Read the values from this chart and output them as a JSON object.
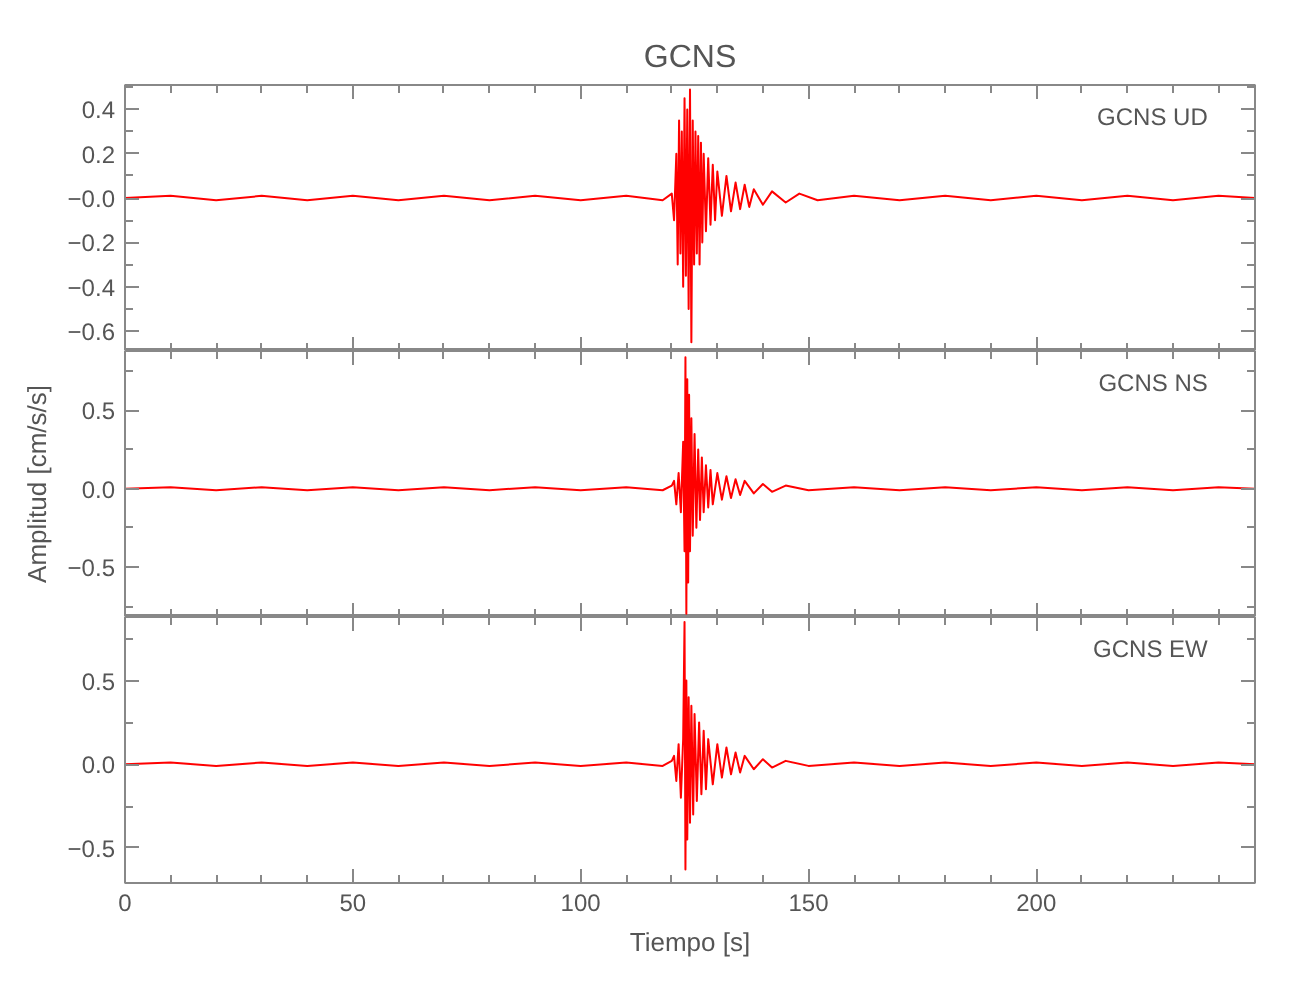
{
  "chart_data": [
    {
      "type": "line",
      "title": "GCNS",
      "annotations": [
        "GCNS   UD"
      ],
      "grid": false,
      "tick_labels": "y",
      "xlim": [
        0,
        248
      ],
      "ylim": [
        -0.69,
        0.51
      ],
      "xticks": [
        0,
        {
          "value": 10,
          "label": null
        },
        {
          "value": 20,
          "label": null
        },
        {
          "value": 30,
          "label": null
        },
        {
          "value": 40,
          "label": null
        },
        50,
        {
          "value": 60,
          "label": null
        },
        {
          "value": 70,
          "label": null
        },
        {
          "value": 80,
          "label": null
        },
        {
          "value": 90,
          "label": null
        },
        100,
        {
          "value": 110,
          "label": null
        },
        {
          "value": 120,
          "label": null
        },
        {
          "value": 130,
          "label": null
        },
        {
          "value": 140,
          "label": null
        },
        150,
        {
          "value": 160,
          "label": null
        },
        {
          "value": 170,
          "label": null
        },
        {
          "value": 180,
          "label": null
        },
        {
          "value": 190,
          "label": null
        },
        200,
        {
          "value": 210,
          "label": null
        },
        {
          "value": 220,
          "label": null
        },
        {
          "value": 230,
          "label": null
        },
        {
          "value": 240,
          "label": null
        }
      ],
      "yticks": [
        {
          "value": -0.6,
          "label": "−0.6"
        },
        {
          "value": -0.5,
          "label": null
        },
        {
          "value": -0.4,
          "label": "−0.4"
        },
        {
          "value": -0.3,
          "label": null
        },
        {
          "value": -0.2,
          "label": "−0.2"
        },
        {
          "value": -0.1,
          "label": null
        },
        {
          "value": 0,
          "label": "−0.0"
        },
        {
          "value": 0.1,
          "label": null
        },
        {
          "value": 0.2,
          "label": "0.2"
        },
        {
          "value": 0.3,
          "label": null
        },
        {
          "value": 0.4,
          "label": "0.4"
        },
        {
          "value": 0.5,
          "label": null
        }
      ],
      "series": [
        {
          "color": "#ff0000",
          "x": [
            0,
            10,
            20,
            30,
            40,
            50,
            60,
            70,
            80,
            90,
            100,
            110,
            118,
            120,
            120.5,
            121,
            121.3,
            121.6,
            121.9,
            122.2,
            122.5,
            122.8,
            123.1,
            123.4,
            123.7,
            124,
            124.3,
            124.6,
            124.9,
            125.2,
            125.5,
            125.8,
            126.1,
            126.4,
            126.7,
            127,
            127.5,
            128,
            128.5,
            129,
            129.5,
            130,
            131,
            132,
            133,
            134,
            135,
            136,
            137,
            138,
            140,
            142,
            145,
            148,
            152,
            160,
            170,
            180,
            190,
            200,
            210,
            220,
            230,
            240,
            248
          ],
          "values": [
            0,
            0.01,
            -0.01,
            0.01,
            -0.01,
            0.01,
            -0.01,
            0.01,
            -0.01,
            0.01,
            -0.01,
            0.01,
            -0.01,
            0.02,
            -0.1,
            0.2,
            -0.3,
            0.35,
            -0.25,
            0.3,
            -0.4,
            0.45,
            -0.35,
            0.4,
            -0.5,
            0.49,
            -0.65,
            0.35,
            -0.3,
            0.3,
            -0.25,
            0.28,
            -0.3,
            0.25,
            -0.2,
            0.2,
            -0.15,
            0.18,
            -0.12,
            0.15,
            -0.1,
            0.12,
            -0.08,
            0.1,
            -0.06,
            0.07,
            -0.05,
            0.06,
            -0.04,
            0.04,
            -0.03,
            0.03,
            -0.02,
            0.02,
            -0.01,
            0.01,
            -0.01,
            0.01,
            -0.01,
            0.01,
            -0.01,
            0.01,
            -0.01,
            0.01,
            0
          ]
        }
      ]
    },
    {
      "type": "line",
      "ylabel": "Amplitud [cm/s/s]",
      "annotations": [
        "GCNS   NS"
      ],
      "grid": false,
      "tick_labels": "y",
      "xlim": [
        0,
        248
      ],
      "ylim": [
        -0.82,
        0.88
      ],
      "xticks": [
        0,
        {
          "value": 10,
          "label": null
        },
        {
          "value": 20,
          "label": null
        },
        {
          "value": 30,
          "label": null
        },
        {
          "value": 40,
          "label": null
        },
        50,
        {
          "value": 60,
          "label": null
        },
        {
          "value": 70,
          "label": null
        },
        {
          "value": 80,
          "label": null
        },
        {
          "value": 90,
          "label": null
        },
        100,
        {
          "value": 110,
          "label": null
        },
        {
          "value": 120,
          "label": null
        },
        {
          "value": 130,
          "label": null
        },
        {
          "value": 140,
          "label": null
        },
        150,
        {
          "value": 160,
          "label": null
        },
        {
          "value": 170,
          "label": null
        },
        {
          "value": 180,
          "label": null
        },
        {
          "value": 190,
          "label": null
        },
        200,
        {
          "value": 210,
          "label": null
        },
        {
          "value": 220,
          "label": null
        },
        {
          "value": 230,
          "label": null
        },
        {
          "value": 240,
          "label": null
        }
      ],
      "yticks": [
        {
          "value": -0.75,
          "label": null
        },
        {
          "value": -0.5,
          "label": "−0.5"
        },
        {
          "value": -0.25,
          "label": null
        },
        {
          "value": 0,
          "label": "0.0"
        },
        {
          "value": 0.25,
          "label": null
        },
        {
          "value": 0.5,
          "label": "0.5"
        },
        {
          "value": 0.75,
          "label": null
        }
      ],
      "series": [
        {
          "color": "#ff0000",
          "x": [
            0,
            10,
            20,
            30,
            40,
            50,
            60,
            70,
            80,
            90,
            100,
            110,
            118,
            120,
            120.5,
            121,
            121.5,
            122,
            122.5,
            122.8,
            123,
            123.2,
            123.4,
            123.6,
            123.8,
            124,
            124.3,
            124.6,
            125,
            125.4,
            125.8,
            126.2,
            126.6,
            127,
            127.5,
            128,
            128.5,
            129,
            130,
            131,
            132,
            133,
            134,
            135,
            136,
            138,
            140,
            142,
            145,
            150,
            160,
            170,
            180,
            190,
            200,
            210,
            220,
            230,
            240,
            248
          ],
          "values": [
            0,
            0.01,
            -0.01,
            0.01,
            -0.01,
            0.01,
            -0.01,
            0.01,
            -0.01,
            0.01,
            -0.01,
            0.01,
            -0.01,
            0.02,
            0.05,
            -0.1,
            0.1,
            -0.15,
            0.3,
            -0.4,
            0.84,
            -0.8,
            0.7,
            -0.6,
            0.6,
            -0.4,
            0.45,
            -0.3,
            0.35,
            -0.25,
            0.25,
            -0.2,
            0.2,
            -0.15,
            0.15,
            -0.12,
            0.12,
            -0.1,
            0.1,
            -0.07,
            0.08,
            -0.06,
            0.06,
            -0.04,
            0.05,
            -0.03,
            0.03,
            -0.02,
            0.02,
            -0.01,
            0.01,
            -0.01,
            0.01,
            -0.01,
            0.01,
            -0.01,
            0.01,
            -0.01,
            0.01,
            0
          ]
        }
      ]
    },
    {
      "type": "line",
      "xlabel": "Tiempo [s]",
      "annotations": [
        "GCNS   EW"
      ],
      "grid": false,
      "xlim": [
        0,
        248
      ],
      "ylim": [
        -0.71,
        0.88
      ],
      "xticks": [
        0,
        {
          "value": 10,
          "label": null
        },
        {
          "value": 20,
          "label": null
        },
        {
          "value": 30,
          "label": null
        },
        {
          "value": 40,
          "label": null
        },
        50,
        {
          "value": 60,
          "label": null
        },
        {
          "value": 70,
          "label": null
        },
        {
          "value": 80,
          "label": null
        },
        {
          "value": 90,
          "label": null
        },
        100,
        {
          "value": 110,
          "label": null
        },
        {
          "value": 120,
          "label": null
        },
        {
          "value": 130,
          "label": null
        },
        {
          "value": 140,
          "label": null
        },
        150,
        {
          "value": 160,
          "label": null
        },
        {
          "value": 170,
          "label": null
        },
        {
          "value": 180,
          "label": null
        },
        {
          "value": 190,
          "label": null
        },
        200,
        {
          "value": 210,
          "label": null
        },
        {
          "value": 220,
          "label": null
        },
        {
          "value": 230,
          "label": null
        },
        {
          "value": 240,
          "label": null
        }
      ],
      "yticks": [
        {
          "value": -0.5,
          "label": "−0.5"
        },
        {
          "value": -0.25,
          "label": null
        },
        {
          "value": 0,
          "label": "0.0"
        },
        {
          "value": 0.25,
          "label": null
        },
        {
          "value": 0.5,
          "label": "0.5"
        },
        {
          "value": 0.75,
          "label": null
        }
      ],
      "series": [
        {
          "color": "#ff0000",
          "x": [
            0,
            10,
            20,
            30,
            40,
            50,
            60,
            70,
            80,
            90,
            100,
            110,
            118,
            120,
            120.5,
            121,
            121.5,
            122,
            122.5,
            122.8,
            123,
            123.2,
            123.4,
            123.7,
            124,
            124.3,
            124.7,
            125,
            125.5,
            126,
            126.5,
            127,
            127.5,
            128,
            129,
            130,
            131,
            132,
            133,
            134,
            135,
            136,
            138,
            140,
            142,
            145,
            150,
            160,
            170,
            180,
            190,
            200,
            210,
            220,
            230,
            240,
            248
          ],
          "values": [
            0,
            0.01,
            -0.01,
            0.01,
            -0.01,
            0.01,
            -0.01,
            0.01,
            -0.01,
            0.01,
            -0.01,
            0.01,
            -0.01,
            0.02,
            0.05,
            -0.1,
            0.12,
            -0.2,
            0.15,
            0.85,
            -0.63,
            0.5,
            -0.45,
            0.4,
            -0.35,
            0.35,
            -0.3,
            0.3,
            -0.22,
            0.25,
            -0.18,
            0.2,
            -0.15,
            0.15,
            -0.12,
            0.12,
            -0.08,
            0.1,
            -0.06,
            0.07,
            -0.05,
            0.05,
            -0.03,
            0.03,
            -0.02,
            0.02,
            -0.01,
            0.01,
            -0.01,
            0.01,
            -0.01,
            0.01,
            -0.01,
            0.01,
            -0.01,
            0.01,
            0
          ]
        }
      ]
    }
  ]
}
